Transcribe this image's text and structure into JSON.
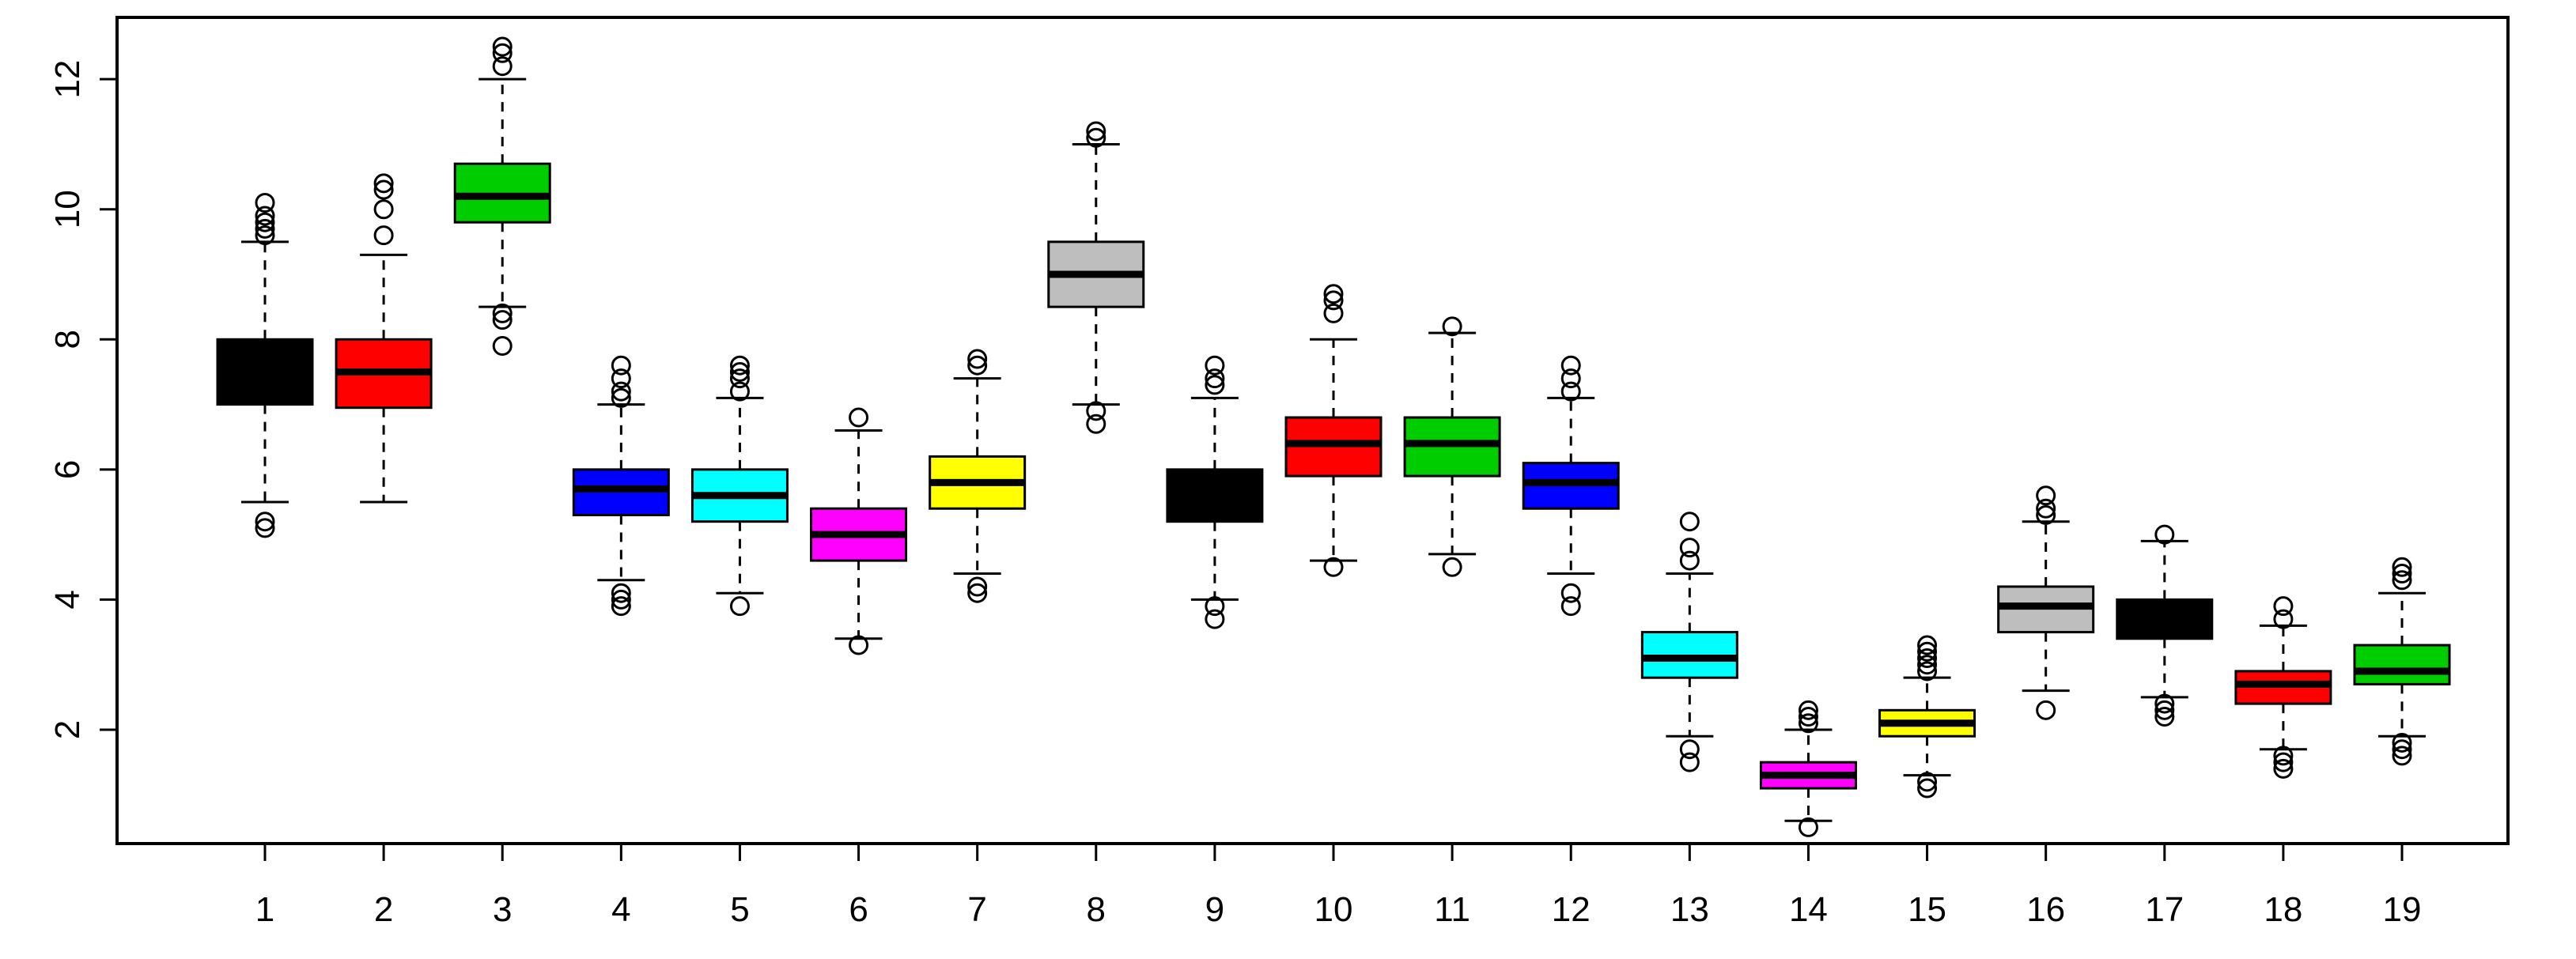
{
  "chart_data": {
    "type": "boxplot",
    "title": "",
    "xlabel": "",
    "ylabel": "",
    "ylim": [
      0.25,
      12.95
    ],
    "y_ticks": [
      2,
      4,
      6,
      8,
      10,
      12
    ],
    "grid": false,
    "legend": "none",
    "categories": [
      "1",
      "2",
      "3",
      "4",
      "5",
      "6",
      "7",
      "8",
      "9",
      "10",
      "11",
      "12",
      "13",
      "14",
      "15",
      "16",
      "17",
      "18",
      "19"
    ],
    "series": [
      {
        "name": "1",
        "color": "#000000",
        "whisker_low": 5.5,
        "q1": 7.0,
        "median": 7.5,
        "q3": 8.0,
        "whisker_high": 9.5,
        "outliers": [
          5.1,
          5.2,
          9.6,
          9.7,
          9.8,
          9.9,
          10.1
        ]
      },
      {
        "name": "2",
        "color": "#ff0000",
        "whisker_low": 5.5,
        "q1": 6.95,
        "median": 7.5,
        "q3": 8.0,
        "whisker_high": 9.3,
        "outliers": [
          9.6,
          10.0,
          10.3,
          10.4
        ]
      },
      {
        "name": "3",
        "color": "#00cd00",
        "whisker_low": 8.5,
        "q1": 9.8,
        "median": 10.2,
        "q3": 10.7,
        "whisker_high": 12.0,
        "outliers": [
          7.9,
          8.3,
          8.4,
          12.2,
          12.4,
          12.5
        ]
      },
      {
        "name": "4",
        "color": "#0000ff",
        "whisker_low": 4.3,
        "q1": 5.3,
        "median": 5.7,
        "q3": 6.0,
        "whisker_high": 7.0,
        "outliers": [
          3.9,
          4.0,
          4.1,
          7.1,
          7.2,
          7.4,
          7.6
        ]
      },
      {
        "name": "5",
        "color": "#00ffff",
        "whisker_low": 4.1,
        "q1": 5.2,
        "median": 5.6,
        "q3": 6.0,
        "whisker_high": 7.1,
        "outliers": [
          3.9,
          7.2,
          7.4,
          7.5,
          7.6
        ]
      },
      {
        "name": "6",
        "color": "#ff00ff",
        "whisker_low": 3.4,
        "q1": 4.6,
        "median": 5.0,
        "q3": 5.4,
        "whisker_high": 6.6,
        "outliers": [
          3.3,
          6.8
        ]
      },
      {
        "name": "7",
        "color": "#ffff00",
        "whisker_low": 4.4,
        "q1": 5.4,
        "median": 5.8,
        "q3": 6.2,
        "whisker_high": 7.4,
        "outliers": [
          4.1,
          4.2,
          7.6,
          7.7
        ]
      },
      {
        "name": "8",
        "color": "#bebebe",
        "whisker_low": 7.0,
        "q1": 8.5,
        "median": 9.0,
        "q3": 9.5,
        "whisker_high": 11.0,
        "outliers": [
          6.7,
          6.9,
          11.1,
          11.2
        ]
      },
      {
        "name": "9",
        "color": "#000000",
        "whisker_low": 4.0,
        "q1": 5.2,
        "median": 5.6,
        "q3": 6.0,
        "whisker_high": 7.1,
        "outliers": [
          3.7,
          3.9,
          7.3,
          7.4,
          7.6
        ]
      },
      {
        "name": "10",
        "color": "#ff0000",
        "whisker_low": 4.6,
        "q1": 5.9,
        "median": 6.4,
        "q3": 6.8,
        "whisker_high": 8.0,
        "outliers": [
          4.5,
          8.4,
          8.6,
          8.7
        ]
      },
      {
        "name": "11",
        "color": "#00cd00",
        "whisker_low": 4.7,
        "q1": 5.9,
        "median": 6.4,
        "q3": 6.8,
        "whisker_high": 8.1,
        "outliers": [
          4.5,
          8.2
        ]
      },
      {
        "name": "12",
        "color": "#0000ff",
        "whisker_low": 4.4,
        "q1": 5.4,
        "median": 5.8,
        "q3": 6.1,
        "whisker_high": 7.1,
        "outliers": [
          3.9,
          4.1,
          7.2,
          7.4,
          7.6
        ]
      },
      {
        "name": "13",
        "color": "#00ffff",
        "whisker_low": 1.9,
        "q1": 2.8,
        "median": 3.1,
        "q3": 3.5,
        "whisker_high": 4.4,
        "outliers": [
          1.5,
          1.7,
          4.6,
          4.8,
          5.2
        ]
      },
      {
        "name": "14",
        "color": "#ff00ff",
        "whisker_low": 0.6,
        "q1": 1.1,
        "median": 1.3,
        "q3": 1.5,
        "whisker_high": 2.0,
        "outliers": [
          0.5,
          2.1,
          2.2,
          2.3
        ]
      },
      {
        "name": "15",
        "color": "#ffff00",
        "whisker_low": 1.3,
        "q1": 1.9,
        "median": 2.1,
        "q3": 2.3,
        "whisker_high": 2.8,
        "outliers": [
          1.1,
          1.2,
          2.9,
          3.0,
          3.1,
          3.2,
          3.3
        ]
      },
      {
        "name": "16",
        "color": "#bebebe",
        "whisker_low": 2.6,
        "q1": 3.5,
        "median": 3.9,
        "q3": 4.2,
        "whisker_high": 5.2,
        "outliers": [
          2.3,
          5.3,
          5.4,
          5.6
        ]
      },
      {
        "name": "17",
        "color": "#000000",
        "whisker_low": 2.5,
        "q1": 3.4,
        "median": 3.7,
        "q3": 4.0,
        "whisker_high": 4.9,
        "outliers": [
          2.2,
          2.3,
          2.4,
          5.0
        ]
      },
      {
        "name": "18",
        "color": "#ff0000",
        "whisker_low": 1.7,
        "q1": 2.4,
        "median": 2.7,
        "q3": 2.9,
        "whisker_high": 3.6,
        "outliers": [
          1.4,
          1.5,
          1.6,
          3.7,
          3.9
        ]
      },
      {
        "name": "19",
        "color": "#00cd00",
        "whisker_low": 1.9,
        "q1": 2.7,
        "median": 2.9,
        "q3": 3.3,
        "whisker_high": 4.1,
        "outliers": [
          1.6,
          1.7,
          1.8,
          4.3,
          4.4,
          4.5
        ]
      }
    ]
  }
}
